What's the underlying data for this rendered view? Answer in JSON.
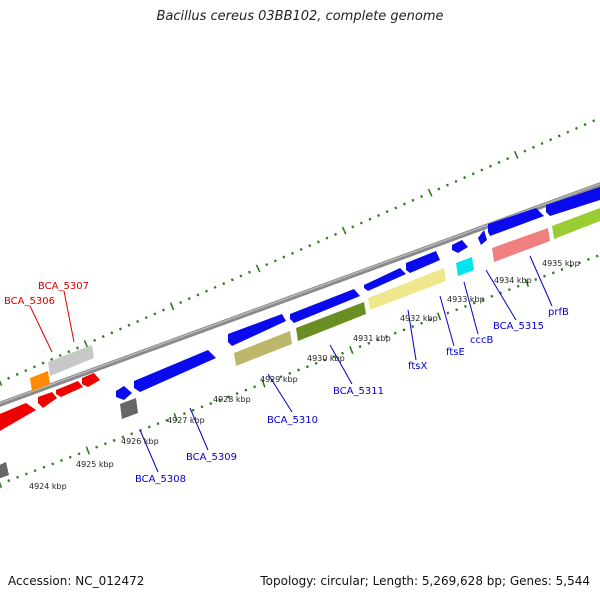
{
  "title": "Bacillus cereus 03BB102, complete genome",
  "footer": {
    "accession": "Accession: NC_012472",
    "stats": "Topology: circular; Length: 5,269,628 bp; Genes: 5,544"
  },
  "colors": {
    "backbone": "#8a8a8a",
    "tick": "#2e7d1e",
    "label_red": "#dd0000",
    "label_blue": "#0000cc",
    "gene_blue": "#0a0aee",
    "gene_red": "#ee0000",
    "gene_orange": "#ff8c00",
    "gene_lightgray": "#c8c8c8",
    "gene_darkgray": "#666666",
    "gene_khaki": "#bdb76b",
    "gene_olive": "#6b8e23",
    "gene_wheat": "#f0e68c",
    "gene_cyan": "#00e5ee",
    "gene_salmon": "#f08080",
    "gene_green": "#9acd32"
  },
  "kbp_labels": [
    "4924 kbp",
    "4925 kbp",
    "4926 kbp",
    "4927 kbp",
    "4928 kbp",
    "4929 kbp",
    "4930 kbp",
    "4931 kbp",
    "4932 kbp",
    "4933 kbp",
    "4934 kbp",
    "4935 kbp"
  ],
  "gene_labels": [
    {
      "text": "BCA_5307",
      "color": "red"
    },
    {
      "text": "BCA_5306",
      "color": "red"
    },
    {
      "text": "BCA_5308",
      "color": "blue"
    },
    {
      "text": "BCA_5309",
      "color": "blue"
    },
    {
      "text": "BCA_5310",
      "color": "blue"
    },
    {
      "text": "BCA_5311",
      "color": "blue"
    },
    {
      "text": "ftsX",
      "color": "blue"
    },
    {
      "text": "ftsE",
      "color": "blue"
    },
    {
      "text": "cccB",
      "color": "blue"
    },
    {
      "text": "BCA_5315",
      "color": "blue"
    },
    {
      "text": "prfB",
      "color": "blue"
    }
  ]
}
